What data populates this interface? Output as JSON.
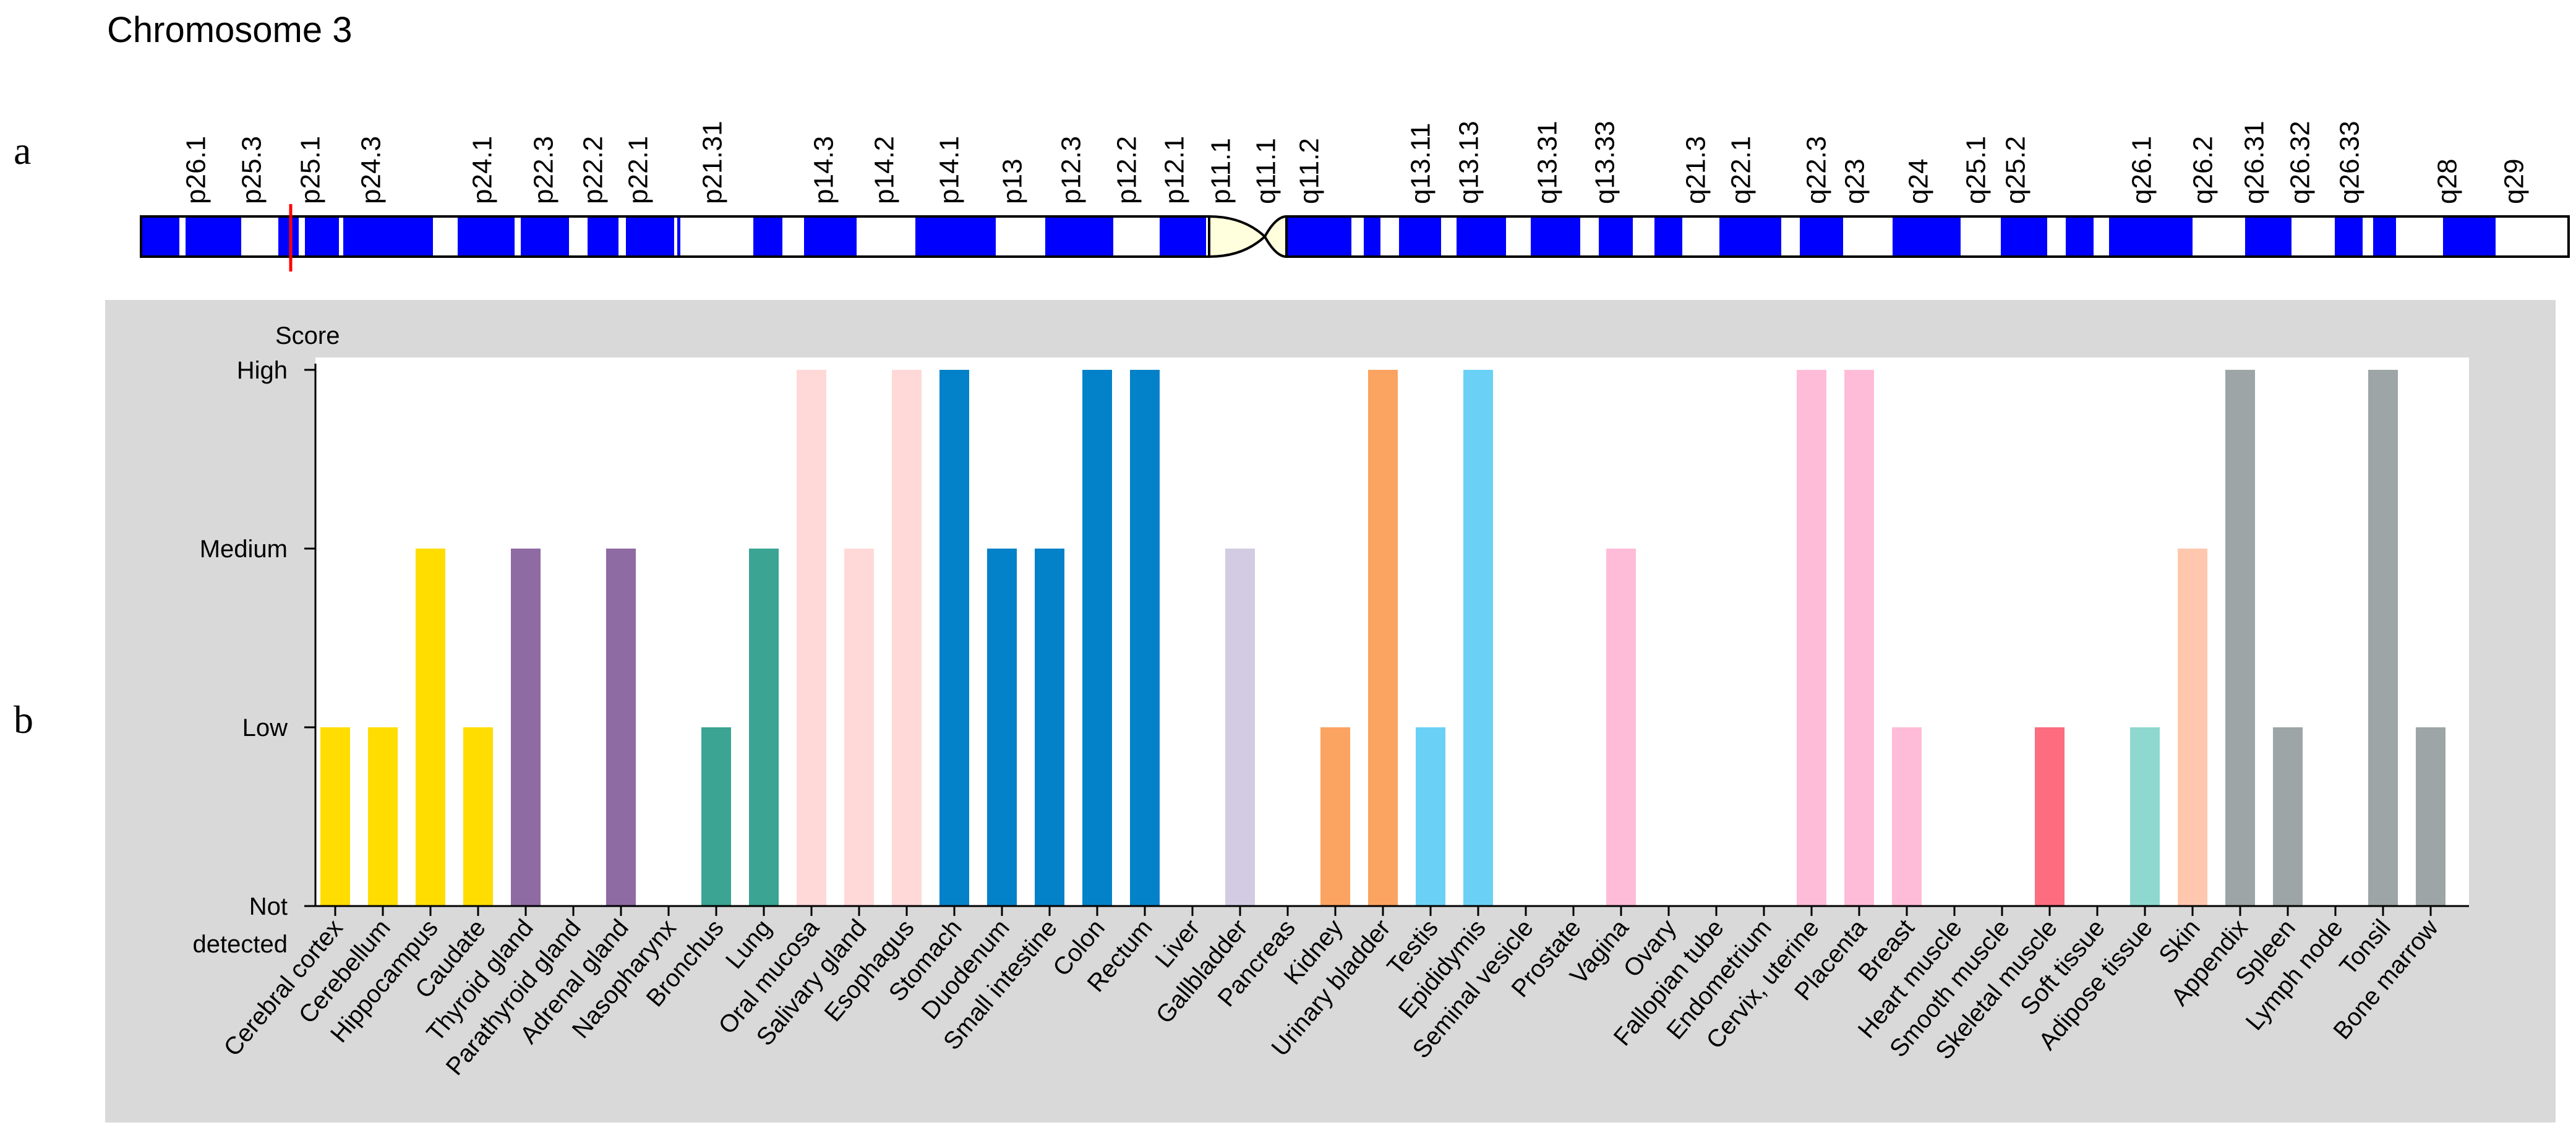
{
  "panel_labels": {
    "a": "a",
    "b": "b"
  },
  "chromosome": {
    "title": "Chromosome 3",
    "bands": [
      "p26.1",
      "p25.3",
      "p25.1",
      "p24.3",
      "p24.1",
      "p22.3",
      "p22.2",
      "p22.1",
      "p21.31",
      "p14.3",
      "p14.2",
      "p14.1",
      "p13",
      "p12.3",
      "p12.2",
      "p12.1",
      "p11.1",
      "q11.1",
      "q11.2",
      "q13.11",
      "q13.13",
      "q13.31",
      "q13.33",
      "q21.3",
      "q22.1",
      "q22.3",
      "q23",
      "q24",
      "q25.1",
      "q25.2",
      "q26.1",
      "q26.2",
      "q26.31",
      "q26.32",
      "q26.33",
      "q28",
      "q29"
    ],
    "marker_band": "p25.1",
    "colors": {
      "stain": "#0000ff",
      "centromere": "#ffffdd",
      "marker": "#ff0000"
    }
  },
  "chart_data": {
    "type": "bar",
    "title": "",
    "ylabel": "Score",
    "y_levels": [
      "Not detected",
      "Low",
      "Medium",
      "High"
    ],
    "y_tick_labels": [
      {
        "line1": "Not",
        "line2": "detected"
      },
      {
        "line1": "Low",
        "line2": ""
      },
      {
        "line1": "Medium",
        "line2": ""
      },
      {
        "line1": "High",
        "line2": ""
      }
    ],
    "ylim": [
      0,
      3
    ],
    "categories": [
      "Cerebral cortex",
      "Cerebellum",
      "Hippocampus",
      "Caudate",
      "Thyroid gland",
      "Parathyroid gland",
      "Adrenal gland",
      "Nasopharynx",
      "Bronchus",
      "Lung",
      "Oral mucosa",
      "Salivary gland",
      "Esophagus",
      "Stomach",
      "Duodenum",
      "Small intestine",
      "Colon",
      "Rectum",
      "Liver",
      "Gallbladder",
      "Pancreas",
      "Kidney",
      "Urinary bladder",
      "Testis",
      "Epididymis",
      "Seminal vesicle",
      "Prostate",
      "Vagina",
      "Ovary",
      "Fallopian tube",
      "Endometrium",
      "Cervix, uterine",
      "Placenta",
      "Breast",
      "Heart muscle",
      "Smooth muscle",
      "Skeletal muscle",
      "Soft tissue",
      "Adipose tissue",
      "Skin",
      "Appendix",
      "Spleen",
      "Lymph node",
      "Tonsil",
      "Bone marrow"
    ],
    "values": [
      1,
      1,
      2,
      1,
      2,
      0,
      2,
      0,
      1,
      2,
      3,
      2,
      3,
      3,
      2,
      2,
      3,
      3,
      0,
      2,
      0,
      1,
      3,
      1,
      3,
      0,
      0,
      2,
      0,
      0,
      0,
      3,
      3,
      1,
      0,
      0,
      1,
      0,
      1,
      2,
      3,
      1,
      0,
      3,
      1
    ],
    "colors": [
      "#ffdd00",
      "#ffdd00",
      "#ffdd00",
      "#ffdd00",
      "#8e6ba3",
      "#8e6ba3",
      "#8e6ba3",
      "#3ba493",
      "#3ba493",
      "#3ba493",
      "#ffd9d7",
      "#ffd9d7",
      "#ffd9d7",
      "#0482c9",
      "#0482c9",
      "#0482c9",
      "#0482c9",
      "#0482c9",
      "#d3cbe3",
      "#d3cbe3",
      "#d3cbe3",
      "#fba361",
      "#fba361",
      "#6bd0f5",
      "#6bd0f5",
      "#ffbcd9",
      "#ffbcd9",
      "#ffbcd9",
      "#ffbcd9",
      "#ffbcd9",
      "#ffbcd9",
      "#ffbcd9",
      "#ffbcd9",
      "#ffbcd9",
      "#fb6d7f",
      "#fb6d7f",
      "#fb6d7f",
      "#8ed8cf",
      "#8ed8cf",
      "#ffc8ae",
      "#9ea5a6",
      "#9ea5a6",
      "#9ea5a6",
      "#9ea5a6",
      "#9ea5a6"
    ],
    "background": "#d9d9d9",
    "plot_background": "#ffffff"
  }
}
